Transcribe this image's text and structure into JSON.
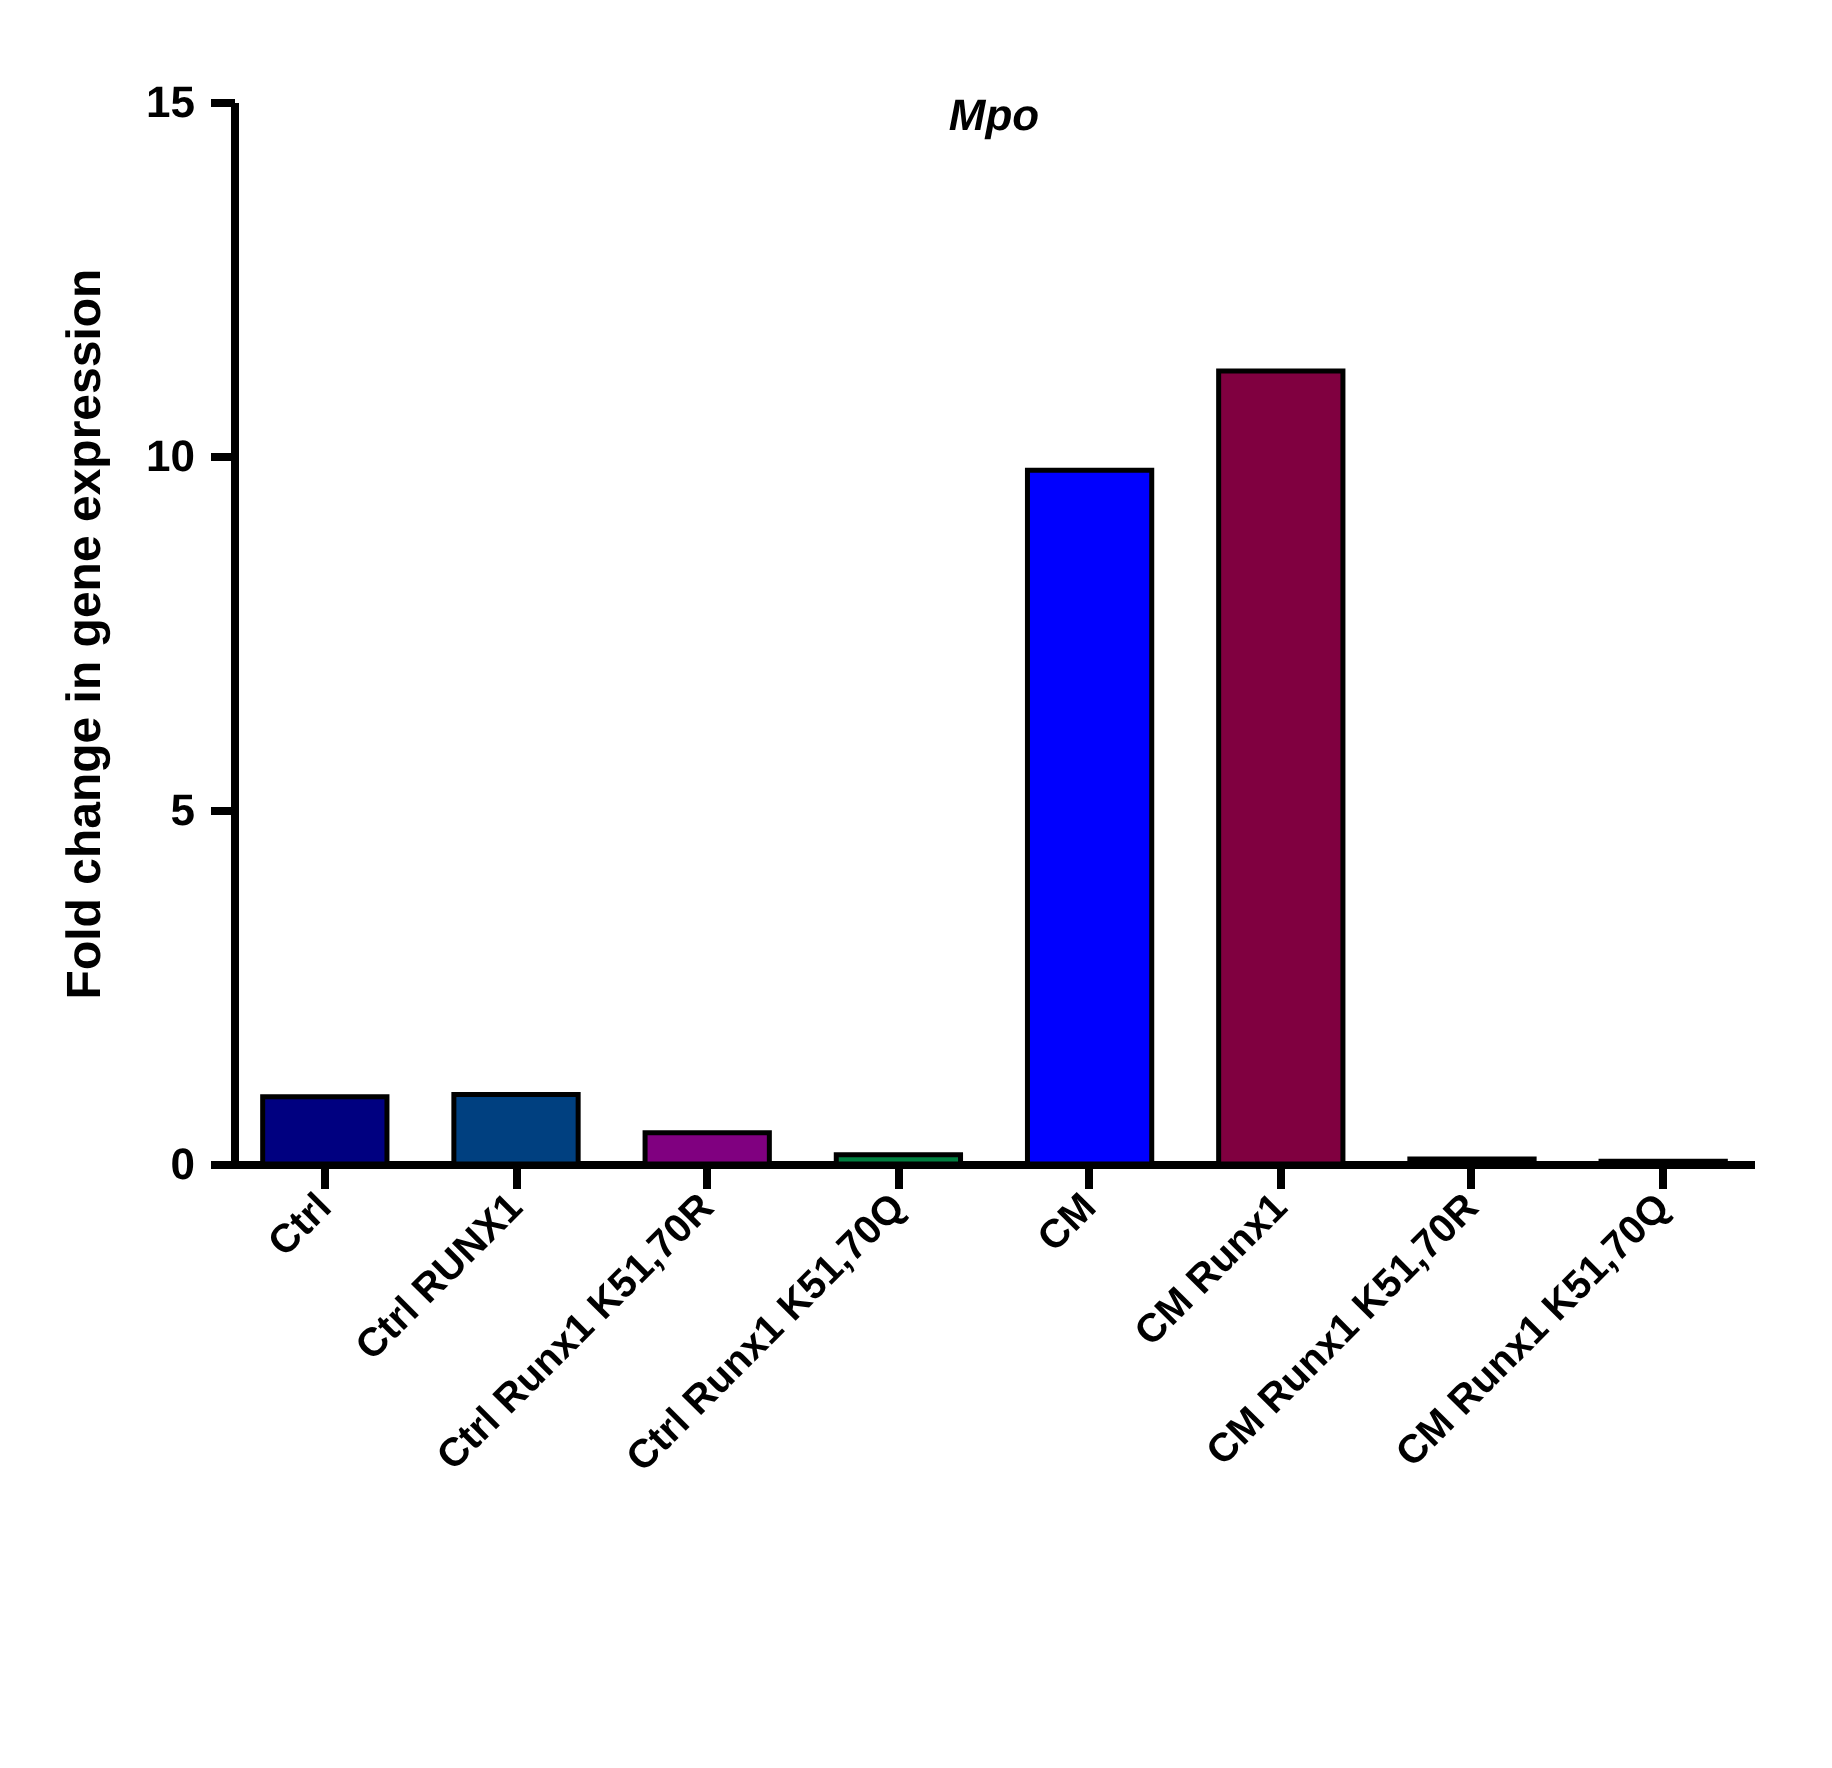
{
  "chart_data": {
    "type": "bar",
    "title": "Mpo",
    "ylabel": "Fold change in gene expression",
    "categories": [
      "Ctrl",
      "Ctrl RUNX1",
      "Ctrl Runx1 K51,70R",
      "Ctrl Runx1 K51,70Q",
      "CM",
      "CM Runx1",
      "CM Runx1 K51,70R",
      "CM Runx1 K51,70Q"
    ],
    "values": [
      0.95,
      0.98,
      0.44,
      0.13,
      9.8,
      11.2,
      0.07,
      0.04
    ],
    "colors": [
      "#000080",
      "#004080",
      "#800080",
      "#008040",
      "#0000ff",
      "#800040",
      "#404040",
      "#404040"
    ],
    "ylim": [
      0,
      15
    ],
    "yticks": [
      0,
      5,
      10,
      15
    ]
  }
}
